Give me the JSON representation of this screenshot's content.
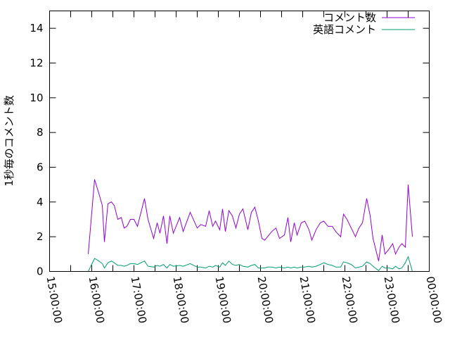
{
  "chart_data": {
    "type": "line",
    "title": "",
    "xlabel": "",
    "ylabel": "1秒毎のコメント数",
    "xlim": [
      "15:00:00",
      "00:00:00"
    ],
    "ylim": [
      0,
      15
    ],
    "x_ticks": [
      "15:00:00",
      "16:00:00",
      "17:00:00",
      "18:00:00",
      "19:00:00",
      "20:00:00",
      "21:00:00",
      "22:00:00",
      "23:00:00",
      "00:00:00"
    ],
    "y_ticks": [
      "0",
      "2",
      "4",
      "6",
      "8",
      "10",
      "12",
      "14"
    ],
    "grid": false,
    "legend_position": "top-right",
    "x": [
      "15:55",
      "16:04",
      "16:10",
      "16:15",
      "16:18",
      "16:23",
      "16:28",
      "16:32",
      "16:37",
      "16:42",
      "16:46",
      "16:50",
      "16:55",
      "17:00",
      "17:05",
      "17:15",
      "17:20",
      "17:28",
      "17:33",
      "17:37",
      "17:42",
      "17:47",
      "17:51",
      "17:56",
      "18:05",
      "18:10",
      "18:20",
      "18:30",
      "18:35",
      "18:42",
      "18:47",
      "18:52",
      "18:56",
      "19:02",
      "19:06",
      "19:10",
      "19:15",
      "19:20",
      "19:25",
      "19:30",
      "19:35",
      "19:42",
      "19:47",
      "19:52",
      "19:57",
      "20:02",
      "20:06",
      "20:10",
      "20:16",
      "20:22",
      "20:27",
      "20:34",
      "20:39",
      "20:43",
      "20:48",
      "20:52",
      "20:58",
      "21:03",
      "21:09",
      "21:13",
      "21:19",
      "21:25",
      "21:30",
      "21:36",
      "21:42",
      "21:47",
      "21:54",
      "21:58",
      "22:03",
      "22:09",
      "22:15",
      "22:20",
      "22:25",
      "22:31",
      "22:36",
      "22:40",
      "22:48",
      "22:53",
      "22:57",
      "23:03",
      "23:08",
      "23:12",
      "23:17",
      "23:21",
      "23:26",
      "23:30",
      "23:36"
    ],
    "series": [
      {
        "name": "コメント数",
        "color": "#9400d3",
        "values": [
          1.0,
          5.3,
          4.5,
          3.8,
          1.7,
          3.9,
          4.0,
          3.8,
          3.0,
          3.1,
          2.5,
          2.6,
          3.0,
          3.0,
          2.6,
          4.2,
          3.0,
          1.9,
          2.8,
          2.2,
          3.2,
          1.6,
          3.2,
          2.2,
          3.1,
          2.3,
          3.4,
          2.5,
          2.7,
          2.6,
          3.5,
          2.6,
          2.9,
          2.4,
          3.6,
          2.3,
          3.5,
          3.2,
          2.5,
          3.3,
          3.6,
          2.4,
          3.4,
          3.7,
          2.9,
          1.9,
          1.8,
          2.0,
          2.3,
          2.5,
          1.9,
          2.1,
          3.1,
          1.7,
          2.8,
          2.1,
          2.8,
          2.9,
          2.4,
          1.8,
          2.4,
          2.8,
          2.9,
          2.6,
          2.6,
          2.3,
          2.0,
          3.3,
          3.0,
          2.5,
          2.0,
          2.5,
          2.8,
          4.2,
          3.2,
          1.9,
          0.6,
          2.1,
          1.0,
          1.3,
          1.6,
          1.0,
          1.4,
          1.6,
          1.4,
          5.0,
          2.0
        ]
      },
      {
        "name": "英語コメント",
        "color": "#009e73",
        "values": [
          0.0,
          0.75,
          0.6,
          0.45,
          0.2,
          0.5,
          0.6,
          0.5,
          0.35,
          0.35,
          0.3,
          0.35,
          0.45,
          0.45,
          0.4,
          0.6,
          0.3,
          0.25,
          0.35,
          0.3,
          0.4,
          0.2,
          0.4,
          0.3,
          0.35,
          0.3,
          0.45,
          0.25,
          0.25,
          0.2,
          0.3,
          0.25,
          0.35,
          0.25,
          0.5,
          0.35,
          0.6,
          0.4,
          0.35,
          0.4,
          0.3,
          0.25,
          0.35,
          0.4,
          0.2,
          0.2,
          0.2,
          0.25,
          0.25,
          0.2,
          0.25,
          0.2,
          0.25,
          0.2,
          0.25,
          0.2,
          0.25,
          0.25,
          0.3,
          0.25,
          0.3,
          0.4,
          0.5,
          0.4,
          0.35,
          0.25,
          0.25,
          0.55,
          0.5,
          0.4,
          0.2,
          0.25,
          0.3,
          0.55,
          0.45,
          0.3,
          0.05,
          0.3,
          0.2,
          0.2,
          0.15,
          0.3,
          0.15,
          0.2,
          0.5,
          0.85,
          0.0
        ]
      }
    ]
  }
}
